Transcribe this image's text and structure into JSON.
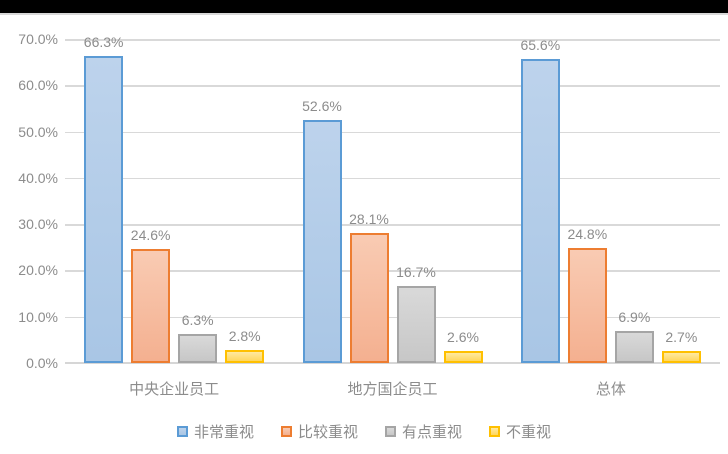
{
  "window": {
    "top_bar_color": "#000000"
  },
  "chart_data": {
    "type": "bar",
    "title": "",
    "xlabel": "",
    "ylabel": "",
    "categories": [
      "中央企业员工",
      "地方国企员工",
      "总体"
    ],
    "series": [
      {
        "name": "非常重视",
        "values": [
          66.3,
          52.6,
          65.6
        ],
        "labels": [
          "66.3%",
          "52.6%",
          "65.6%"
        ],
        "border_color": "#5B9BD5",
        "fill_top": "#BDD3EC",
        "fill_bottom": "#A9C6E5"
      },
      {
        "name": "比较重视",
        "values": [
          24.6,
          28.1,
          24.8
        ],
        "labels": [
          "24.6%",
          "28.1%",
          "24.8%"
        ],
        "border_color": "#ED7D31",
        "fill_top": "#F9CBB3",
        "fill_bottom": "#F4B090"
      },
      {
        "name": "有点重视",
        "values": [
          6.3,
          16.7,
          6.9
        ],
        "labels": [
          "6.3%",
          "16.7%",
          "6.9%"
        ],
        "border_color": "#A5A5A5",
        "fill_top": "#D9D9D9",
        "fill_bottom": "#C7C7C7"
      },
      {
        "name": "不重视",
        "values": [
          2.8,
          2.6,
          2.7
        ],
        "labels": [
          "2.8%",
          "2.6%",
          "2.7%"
        ],
        "border_color": "#FFC000",
        "fill_top": "#FFE9A1",
        "fill_bottom": "#FFD75E"
      }
    ],
    "ylim": [
      0,
      70
    ],
    "y_tick_step": 10,
    "y_tick_labels": [
      "0.0%",
      "10.0%",
      "20.0%",
      "30.0%",
      "40.0%",
      "50.0%",
      "60.0%",
      "70.0%"
    ],
    "grid": true,
    "gridline_color": "#D9D9D9",
    "legend_position": "bottom",
    "text_color": "#8C8C8C",
    "data_labels_shown": true
  }
}
